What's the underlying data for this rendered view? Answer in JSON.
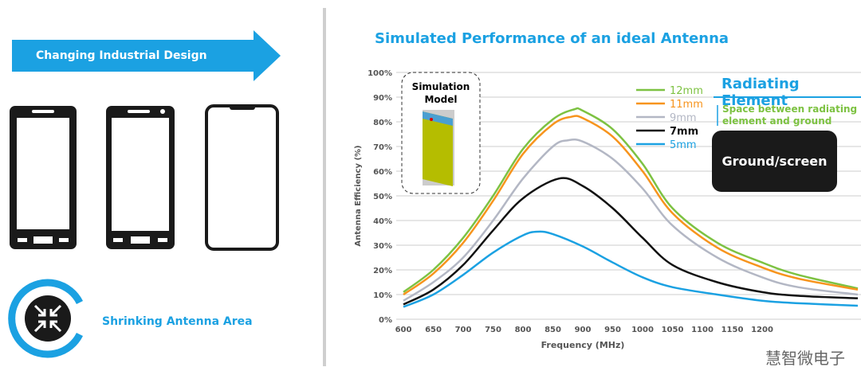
{
  "left": {
    "arrow_label": "Changing Industrial Design",
    "shrink_label": "Shrinking Antenna Area"
  },
  "title": "Simulated Performance of an ideal Antenna",
  "annotation": {
    "radiating": "Radiating Element",
    "space": "Space between radiating element and ground",
    "ground": "Ground/screen"
  },
  "watermark": "慧智微电子",
  "inset": {
    "line1": "Simulation",
    "line2": "Model"
  },
  "colors": {
    "accent": "#1ba1e2",
    "green": "#7dc242"
  },
  "chart_data": {
    "type": "line",
    "xlabel": "Frequency (MHz)",
    "ylabel": "Antenna Efficiency (%)",
    "xlim": [
      600,
      1360
    ],
    "ylim": [
      0,
      100
    ],
    "xticks": [
      600,
      650,
      700,
      750,
      800,
      850,
      900,
      950,
      1000,
      1050,
      1100,
      1150,
      1200
    ],
    "yticks": [
      "0%",
      "10%",
      "20%",
      "30%",
      "40%",
      "50%",
      "60%",
      "70%",
      "80%",
      "90%",
      "100%"
    ],
    "grid": true,
    "legend": "top-right",
    "series": [
      {
        "name": "12mm",
        "color": "#7dc242",
        "x": [
          600,
          650,
          700,
          750,
          800,
          850,
          885,
          900,
          950,
          1000,
          1050,
          1125,
          1200,
          1260,
          1360
        ],
        "y": [
          11,
          20,
          33,
          50,
          69,
          81,
          85,
          84.5,
          77,
          63,
          45,
          31,
          23,
          18,
          12.5
        ]
      },
      {
        "name": "11mm",
        "color": "#f7941d",
        "x": [
          600,
          650,
          700,
          750,
          800,
          850,
          880,
          900,
          950,
          1000,
          1050,
          1125,
          1200,
          1260,
          1360
        ],
        "y": [
          10,
          18.5,
          31,
          48,
          67,
          79,
          82,
          81.5,
          74,
          60,
          43,
          29,
          21,
          16.5,
          12
        ]
      },
      {
        "name": "9mm",
        "color": "#b3b7c4",
        "x": [
          600,
          650,
          700,
          750,
          800,
          850,
          875,
          900,
          950,
          1000,
          1050,
          1125,
          1200,
          1260,
          1360
        ],
        "y": [
          7.5,
          15,
          25,
          40,
          57,
          70,
          72.5,
          72,
          65,
          53,
          38,
          25,
          17,
          13,
          10
        ]
      },
      {
        "name": "7mm",
        "color": "#111111",
        "x": [
          600,
          650,
          700,
          750,
          800,
          860,
          900,
          950,
          1000,
          1050,
          1125,
          1200,
          1260,
          1360
        ],
        "y": [
          6,
          12,
          22,
          36,
          49,
          57,
          54,
          45,
          33,
          22,
          15,
          11,
          9.5,
          8.5
        ]
      },
      {
        "name": "5mm",
        "color": "#1ba1e2",
        "x": [
          600,
          650,
          700,
          750,
          800,
          825,
          850,
          900,
          950,
          1000,
          1050,
          1125,
          1200,
          1260,
          1360
        ],
        "y": [
          5,
          10,
          18,
          27,
          34,
          35.5,
          34.5,
          29.5,
          23,
          17,
          13,
          10,
          7.5,
          6.5,
          5.5
        ]
      }
    ]
  }
}
